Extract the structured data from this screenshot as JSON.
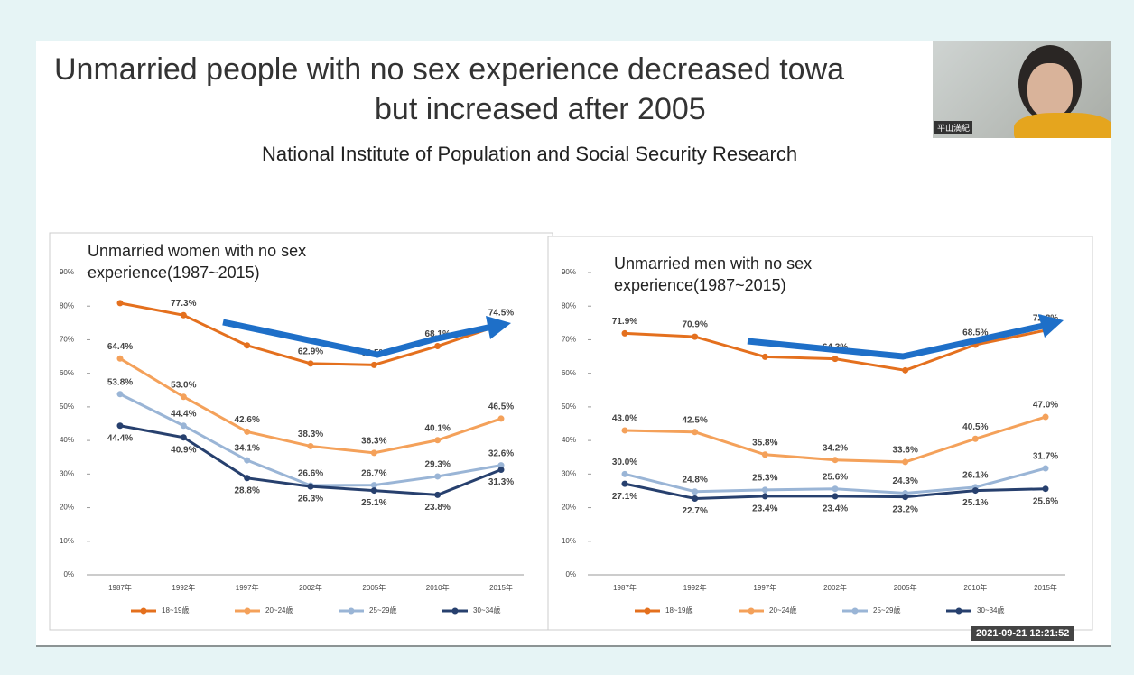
{
  "slide": {
    "title_lines": [
      "Unmarried people with no sex experience decreased towa",
      "but increased after 2005"
    ],
    "subtitle": "National Institute of Population and Social Security Research",
    "webcam_name": "平山満紀",
    "timestamp": "2021-09-21 12:21:52"
  },
  "chart_data": [
    {
      "type": "line",
      "title": "Unmarried women with no sex experience(1987~2015)",
      "categories": [
        "1987年",
        "1992年",
        "1997年",
        "2002年",
        "2005年",
        "2010年",
        "2015年"
      ],
      "series": [
        {
          "name": "18~19歳",
          "color": "#e4701e",
          "values": [
            80.9,
            77.3,
            68.3,
            62.9,
            62.5,
            68.1,
            74.5
          ],
          "value_labels": [
            null,
            "77.3%",
            null,
            "62.9%",
            "62.5%",
            "68.1%",
            "74.5%"
          ]
        },
        {
          "name": "20~24歳",
          "color": "#f4a15a",
          "values": [
            64.4,
            53.0,
            42.6,
            38.3,
            36.3,
            40.1,
            46.5
          ],
          "value_labels": [
            "64.4%",
            "53.0%",
            "42.6%",
            "38.3%",
            "36.3%",
            "40.1%",
            "46.5%"
          ]
        },
        {
          "name": "25~29歳",
          "color": "#9ab5d6",
          "values": [
            53.8,
            44.4,
            34.1,
            26.6,
            26.7,
            29.3,
            32.6
          ],
          "value_labels": [
            "53.8%",
            "44.4%",
            "34.1%",
            "26.6%",
            "26.7%",
            "29.3%",
            "32.6%"
          ]
        },
        {
          "name": "30~34歳",
          "color": "#27406e",
          "values": [
            44.4,
            40.9,
            28.8,
            26.3,
            25.1,
            23.8,
            31.3
          ],
          "value_labels": [
            "44.4%",
            "40.9%",
            "28.8%",
            "26.3%",
            "25.1%",
            "23.8%",
            "31.3%"
          ]
        }
      ],
      "ylim": [
        0,
        90
      ],
      "yticks": [
        {
          "value": 0,
          "label": "0%"
        },
        {
          "value": 10,
          "label": "10%"
        },
        {
          "value": 20,
          "label": "20%"
        },
        {
          "value": 30,
          "label": "30%"
        },
        {
          "value": 40,
          "label": "40%"
        },
        {
          "value": 50,
          "label": "50%"
        },
        {
          "value": 60,
          "label": "60%"
        },
        {
          "value": 70,
          "label": "70%"
        },
        {
          "value": 80,
          "label": "80%"
        },
        {
          "value": 90,
          "label": "90%"
        }
      ],
      "grid": false,
      "legend": "bottom"
    },
    {
      "type": "line",
      "title": "Unmarried men with no sex experience(1987~2015)",
      "categories": [
        "1987年",
        "1992年",
        "1997年",
        "2002年",
        "2005年",
        "2010年",
        "2015年"
      ],
      "series": [
        {
          "name": "18~19歳",
          "color": "#e4701e",
          "values": [
            71.9,
            70.9,
            64.9,
            64.3,
            60.9,
            68.5,
            72.8
          ],
          "value_labels": [
            "71.9%",
            "70.9%",
            null,
            "64.3%",
            null,
            "68.5%",
            "72.8%"
          ]
        },
        {
          "name": "20~24歳",
          "color": "#f4a15a",
          "values": [
            43.0,
            42.5,
            35.8,
            34.2,
            33.6,
            40.5,
            47.0
          ],
          "value_labels": [
            "43.0%",
            "42.5%",
            "35.8%",
            "34.2%",
            "33.6%",
            "40.5%",
            "47.0%"
          ]
        },
        {
          "name": "25~29歳",
          "color": "#9ab5d6",
          "values": [
            30.0,
            24.8,
            25.3,
            25.6,
            24.3,
            26.1,
            31.7
          ],
          "value_labels": [
            "30.0%",
            "24.8%",
            "25.3%",
            "25.6%",
            "24.3%",
            "26.1%",
            "31.7%"
          ]
        },
        {
          "name": "30~34歳",
          "color": "#27406e",
          "values": [
            27.1,
            22.7,
            23.4,
            23.4,
            23.2,
            25.1,
            25.6
          ],
          "value_labels": [
            "27.1%",
            "22.7%",
            "23.4%",
            "23.4%",
            "23.2%",
            "25.1%",
            "25.6%"
          ]
        }
      ],
      "ylim": [
        0,
        90
      ],
      "yticks": [
        {
          "value": 0,
          "label": "0%"
        },
        {
          "value": 10,
          "label": "10%"
        },
        {
          "value": 20,
          "label": "20%"
        },
        {
          "value": 30,
          "label": "30%"
        },
        {
          "value": 40,
          "label": "40%"
        },
        {
          "value": 50,
          "label": "50%"
        },
        {
          "value": 60,
          "label": "60%"
        },
        {
          "value": 70,
          "label": "70%"
        },
        {
          "value": 80,
          "label": "80%"
        },
        {
          "value": 90,
          "label": "90%"
        }
      ],
      "grid": false,
      "legend": "bottom"
    }
  ]
}
